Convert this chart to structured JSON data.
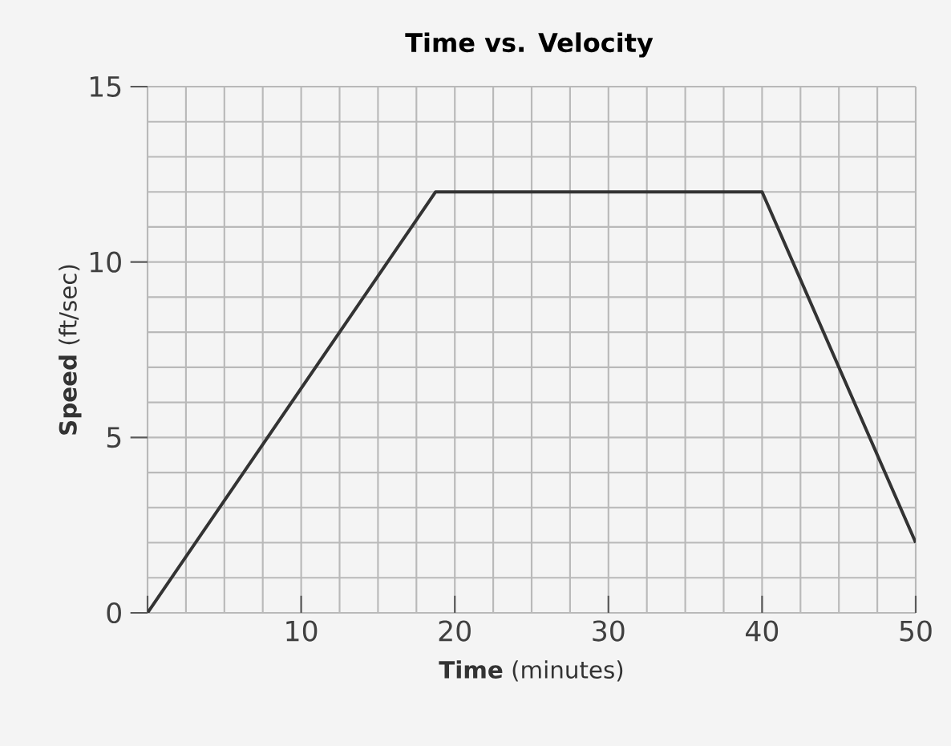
{
  "chart_data": {
    "type": "line",
    "title": "Time vs. Velocity",
    "xlabel": "**Time** (minutes)",
    "ylabel": "**Speed** (ft/sec)",
    "x": [
      0,
      18.75,
      40,
      50
    ],
    "series": [
      {
        "color": "#333333",
        "values": [
          0,
          12,
          12,
          2
        ]
      }
    ],
    "xlim": [
      0,
      50
    ],
    "ylim": [
      0,
      15
    ],
    "xticks": [
      {
        "value": 0,
        "label": null
      },
      10,
      20,
      30,
      40,
      50
    ],
    "yticks": [
      0,
      5,
      10,
      15
    ],
    "grid": true,
    "marker": "none",
    "line_style": "solid"
  }
}
